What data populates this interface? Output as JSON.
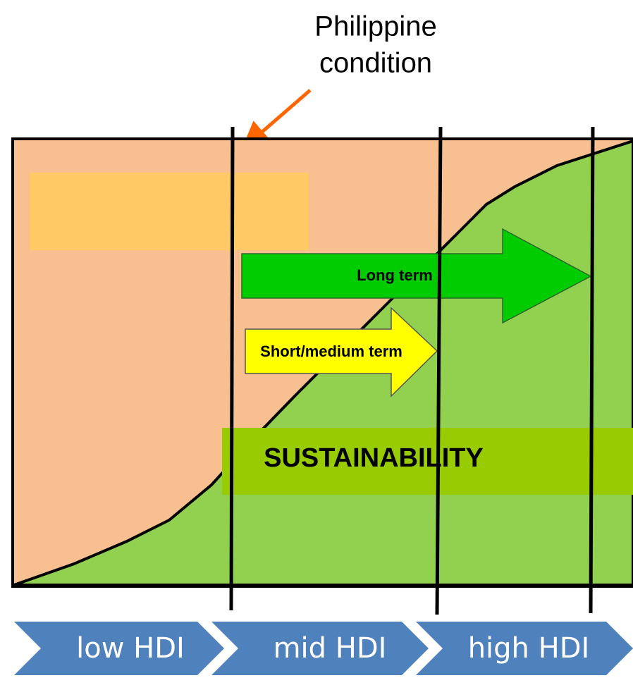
{
  "callout": {
    "lines": [
      "Philippine",
      "condition"
    ]
  },
  "arrows": {
    "long": "Long term",
    "short": "Short/medium term"
  },
  "band": "SUSTAINABILITY",
  "stages": [
    "low HDI",
    "mid HDI",
    "high HDI"
  ]
}
